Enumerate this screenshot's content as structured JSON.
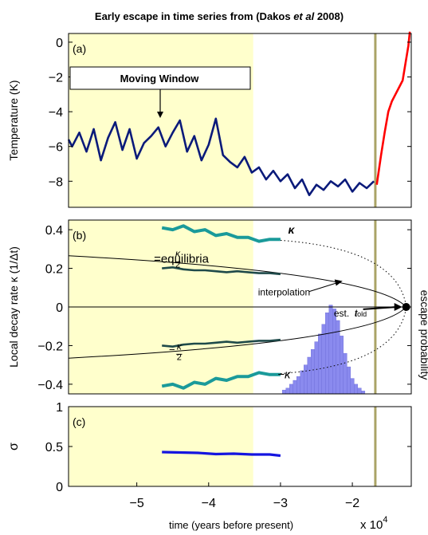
{
  "figure": {
    "title_prefix": "Early escape in time series from (Dakos ",
    "title_italic": "et al",
    "title_suffix": " 2008)",
    "xlabel": "time (years before present)",
    "x_multiplier": "x 10",
    "x_exponent": "4"
  },
  "colors": {
    "window_fill": "#ffffcc",
    "marker_line": "#aaa366",
    "temp_line": "#0a1a7a",
    "temp_recent": "#ff0000",
    "kappa_series": "#1a9a9a",
    "kappa_dark": "#1f4a4a",
    "sigma_line": "#1515e0",
    "hist_fill": "#8a8aee"
  },
  "chart_data": [
    {
      "type": "line",
      "panel_label": "(a)",
      "ylabel": "Temperature (K)",
      "xlim": [
        -5.95,
        -1.18
      ],
      "ylim": [
        -9.5,
        0.5
      ],
      "yticks": [
        "0",
        "−2",
        "−4",
        "−6",
        "−8"
      ],
      "ytick_values": [
        0,
        -2,
        -4,
        -6,
        -8
      ],
      "moving_window": {
        "label": "Moving Window",
        "x_range": [
          -5.95,
          -3.38
        ]
      },
      "marker_x": -1.68,
      "series": [
        {
          "values_x": [
            -5.95,
            -5.9,
            -5.8,
            -5.7,
            -5.6,
            -5.5,
            -5.4,
            -5.3,
            -5.2,
            -5.1,
            -5.0,
            -4.9,
            -4.8,
            -4.7,
            -4.6,
            -4.5,
            -4.4,
            -4.3,
            -4.2,
            -4.1,
            -4.0,
            -3.9,
            -3.8,
            -3.7,
            -3.6,
            -3.5,
            -3.4,
            -3.3,
            -3.2,
            -3.1,
            -3.0,
            -2.9,
            -2.8,
            -2.7,
            -2.6,
            -2.5,
            -2.4,
            -2.3,
            -2.2,
            -2.1,
            -2.0,
            -1.9,
            -1.8,
            -1.7
          ],
          "values_y": [
            -5.6,
            -6.0,
            -5.2,
            -6.3,
            -5.0,
            -6.8,
            -5.5,
            -4.6,
            -6.2,
            -5.0,
            -6.7,
            -5.8,
            -5.4,
            -4.9,
            -6.0,
            -5.2,
            -4.5,
            -6.3,
            -5.4,
            -6.8,
            -5.9,
            -4.4,
            -6.5,
            -6.9,
            -7.2,
            -6.6,
            -7.5,
            -7.2,
            -7.9,
            -7.4,
            -8.0,
            -7.6,
            -8.4,
            -7.9,
            -8.8,
            -8.2,
            -8.5,
            -8.0,
            -8.3,
            -7.9,
            -8.6,
            -8.1,
            -8.4,
            -8.0
          ]
        },
        {
          "values_x": [
            -1.66,
            -1.6,
            -1.55,
            -1.5,
            -1.45,
            -1.4,
            -1.35,
            -1.3,
            -1.26,
            -1.22,
            -1.2
          ],
          "values_y": [
            -8.2,
            -6.5,
            -5.2,
            -4.0,
            -3.4,
            -3.0,
            -2.6,
            -2.2,
            -1.2,
            -0.2,
            0.6
          ]
        }
      ]
    },
    {
      "type": "line",
      "panel_label": "(b)",
      "ylabel": "Local decay rate κ (1/Δt)",
      "ylabel_right": "escape probability",
      "xlim": [
        -5.95,
        -1.18
      ],
      "ylim": [
        -0.45,
        0.45
      ],
      "yticks": [
        "0.4",
        "0.2",
        "0",
        "−0.2",
        "−0.4"
      ],
      "ytick_values": [
        0.4,
        0.2,
        0,
        -0.2,
        -0.4
      ],
      "moving_window": {
        "x_range": [
          -5.95,
          -3.38
        ]
      },
      "marker_x": -1.68,
      "fold_point": {
        "x": -1.25,
        "y": 0
      },
      "annotations": [
        {
          "text": "κ",
          "x": -2.85,
          "y": 0.38
        },
        {
          "text": "=equilibria",
          "x": -4.38,
          "y": 0.23
        },
        {
          "text": "interpolation",
          "x": -2.95,
          "y": 0.06
        },
        {
          "text": "est.",
          "x": -2.15,
          "y": -0.05
        },
        {
          "text": "t",
          "x": -1.95,
          "y": -0.05
        },
        {
          "text": "fold",
          "x": -1.88,
          "y": -0.05
        },
        {
          "text": "−κ",
          "x": -2.95,
          "y": -0.37
        },
        {
          "text": "κ",
          "x": -4.43,
          "y": 0.26
        },
        {
          "text": "2",
          "x": -4.43,
          "y": 0.205
        },
        {
          "text": "−",
          "x": -4.51,
          "y": -0.24
        },
        {
          "text": "κ",
          "x": -4.41,
          "y": -0.22
        },
        {
          "text": "2",
          "x": -4.41,
          "y": -0.275
        }
      ],
      "series": [
        {
          "values_x": [
            -4.65,
            -4.5,
            -4.35,
            -4.2,
            -4.05,
            -3.9,
            -3.75,
            -3.6,
            -3.45,
            -3.3,
            -3.15,
            -3.0
          ],
          "values_y": [
            0.41,
            0.4,
            0.42,
            0.39,
            0.4,
            0.37,
            0.38,
            0.36,
            0.36,
            0.34,
            0.35,
            0.35
          ]
        },
        {
          "values_x": [
            -4.65,
            -4.5,
            -4.35,
            -4.2,
            -4.05,
            -3.9,
            -3.75,
            -3.6,
            -3.45,
            -3.3,
            -3.15,
            -3.0
          ],
          "values_y": [
            0.2,
            0.205,
            0.195,
            0.19,
            0.19,
            0.185,
            0.18,
            0.185,
            0.18,
            0.175,
            0.175,
            0.17
          ]
        },
        {
          "values_x": [
            -4.65,
            -4.5,
            -4.35,
            -4.2,
            -4.05,
            -3.9,
            -3.75,
            -3.6,
            -3.45,
            -3.3,
            -3.15,
            -3.0
          ],
          "values_y": [
            -0.2,
            -0.205,
            -0.195,
            -0.19,
            -0.19,
            -0.185,
            -0.18,
            -0.185,
            -0.18,
            -0.175,
            -0.175,
            -0.17
          ]
        },
        {
          "values_x": [
            -4.65,
            -4.5,
            -4.35,
            -4.2,
            -4.05,
            -3.9,
            -3.75,
            -3.6,
            -3.45,
            -3.3,
            -3.15,
            -3.0
          ],
          "values_y": [
            -0.41,
            -0.4,
            -0.42,
            -0.39,
            -0.4,
            -0.37,
            -0.38,
            -0.36,
            -0.36,
            -0.34,
            -0.35,
            -0.35
          ]
        }
      ],
      "histogram": {
        "bin_x": [
          -2.95,
          -2.9,
          -2.85,
          -2.8,
          -2.75,
          -2.7,
          -2.65,
          -2.6,
          -2.55,
          -2.5,
          -2.45,
          -2.4,
          -2.35,
          -2.3,
          -2.25,
          -2.2,
          -2.15,
          -2.1,
          -2.05,
          -2.0,
          -1.95,
          -1.9,
          -1.85
        ],
        "heights": [
          0.02,
          0.03,
          0.05,
          0.07,
          0.09,
          0.12,
          0.15,
          0.19,
          0.23,
          0.27,
          0.31,
          0.36,
          0.42,
          0.46,
          0.44,
          0.38,
          0.3,
          0.21,
          0.14,
          0.08,
          0.05,
          0.03,
          0.015
        ]
      }
    },
    {
      "type": "line",
      "panel_label": "(c)",
      "ylabel": "σ",
      "xlim": [
        -5.95,
        -1.18
      ],
      "ylim": [
        0,
        1
      ],
      "yticks": [
        "1",
        "0.5",
        "0"
      ],
      "ytick_values": [
        1,
        0.5,
        0
      ],
      "xticks": [
        "−5",
        "−4",
        "−3",
        "−2"
      ],
      "xtick_values": [
        -5,
        -4,
        -3,
        -2
      ],
      "moving_window": {
        "x_range": [
          -5.95,
          -3.38
        ]
      },
      "marker_x": -1.68,
      "series": [
        {
          "values_x": [
            -4.65,
            -4.4,
            -4.15,
            -3.9,
            -3.65,
            -3.4,
            -3.15,
            -3.0
          ],
          "values_y": [
            0.43,
            0.425,
            0.42,
            0.405,
            0.41,
            0.4,
            0.4,
            0.385
          ]
        }
      ]
    }
  ]
}
